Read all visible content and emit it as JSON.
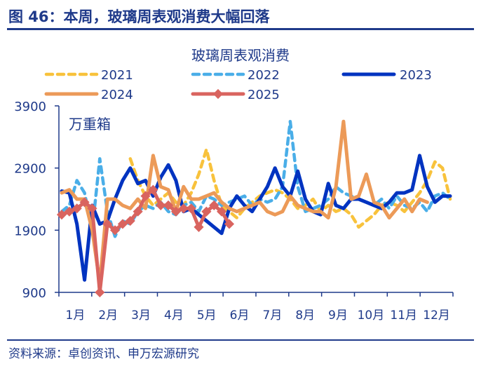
{
  "header": {
    "title": "图 46：本周，玻璃周表观消费大幅回落"
  },
  "footer": {
    "source": "资料来源：卓创资讯、申万宏源研究"
  },
  "chart_data": {
    "type": "line",
    "title": "玻璃周表观消费",
    "unit_label": "万重箱",
    "ylim": [
      900,
      3900
    ],
    "yticks": [
      "900",
      "1900",
      "2900",
      "3900"
    ],
    "xticks": [
      "1月",
      "2月",
      "3月",
      "4月",
      "5月",
      "6月",
      "7月",
      "8月",
      "9月",
      "10月",
      "11月",
      "12月"
    ],
    "grid": false,
    "legend": "top",
    "series": [
      {
        "name": "2021",
        "color": "#f8c23c",
        "style": "dashed",
        "values": [
          null,
          null,
          null,
          null,
          null,
          null,
          null,
          null,
          null,
          3050,
          2700,
          2450,
          2300,
          2400,
          2500,
          2350,
          2300,
          2500,
          2800,
          3200,
          2700,
          2300,
          2200,
          2100,
          2250,
          2350,
          2450,
          2500,
          2550,
          2500,
          2400,
          2250,
          2300,
          2400,
          2200,
          2300,
          2200,
          2250,
          2150,
          1950,
          2050,
          2150,
          2300,
          2350,
          2300,
          2200,
          2350,
          2500,
          2700,
          3000,
          2900,
          2400
        ]
      },
      {
        "name": "2022",
        "color": "#4aaee8",
        "style": "dashed",
        "values": [
          2200,
          2300,
          2700,
          2500,
          1900,
          3050,
          2200,
          1800,
          2050,
          2000,
          2200,
          2300,
          2250,
          2350,
          2200,
          2150,
          2300,
          2350,
          2200,
          2450,
          2400,
          2300,
          2350,
          2400,
          2450,
          2300,
          2400,
          2350,
          2400,
          2600,
          3650,
          2600,
          2200,
          2250,
          2300,
          2400,
          2600,
          2500,
          2450,
          2400,
          2350,
          2300,
          2400,
          2250,
          2450,
          2300,
          2250,
          2350,
          2200,
          2450,
          2500,
          2400
        ]
      },
      {
        "name": "2023",
        "color": "#0033c0",
        "style": "solid",
        "values": [
          2530,
          2500,
          2000,
          1100,
          2300,
          2000,
          2050,
          2400,
          2700,
          2900,
          2650,
          2700,
          2450,
          2750,
          2950,
          2700,
          2200,
          2250,
          2150,
          2050,
          1950,
          1850,
          2250,
          2450,
          2300,
          2200,
          2400,
          2600,
          2900,
          2600,
          2450,
          2850,
          2400,
          2200,
          2150,
          2650,
          2300,
          2250,
          2400,
          2400,
          2350,
          2300,
          2250,
          2350,
          2500,
          2500,
          2550,
          3100,
          2600,
          2350,
          2450,
          2450
        ]
      },
      {
        "name": "2024",
        "color": "#ec9a58",
        "style": "solid",
        "values": [
          2500,
          2550,
          2400,
          2400,
          1900,
          1050,
          2400,
          2400,
          2300,
          2250,
          2400,
          2250,
          3100,
          2600,
          2550,
          2200,
          2600,
          2400,
          2400,
          2450,
          2500,
          2350,
          2250,
          2200,
          2250,
          2300,
          2350,
          2200,
          2150,
          2200,
          2450,
          2300,
          2250,
          2200,
          2200,
          2100,
          2600,
          3650,
          2400,
          2450,
          2800,
          2350,
          2300,
          2100,
          2250,
          2400,
          2200,
          2400,
          2350,
          null,
          null,
          null
        ]
      },
      {
        "name": "2025",
        "color": "#d9645f",
        "style": "marker",
        "values": [
          2150,
          2200,
          2250,
          2350,
          2250,
          900,
          2000,
          1900,
          2000,
          2050,
          2200,
          2450,
          2550,
          2300,
          2300,
          2200,
          2250,
          2250,
          1950,
          2200,
          2300,
          2200,
          2000
        ]
      }
    ]
  }
}
